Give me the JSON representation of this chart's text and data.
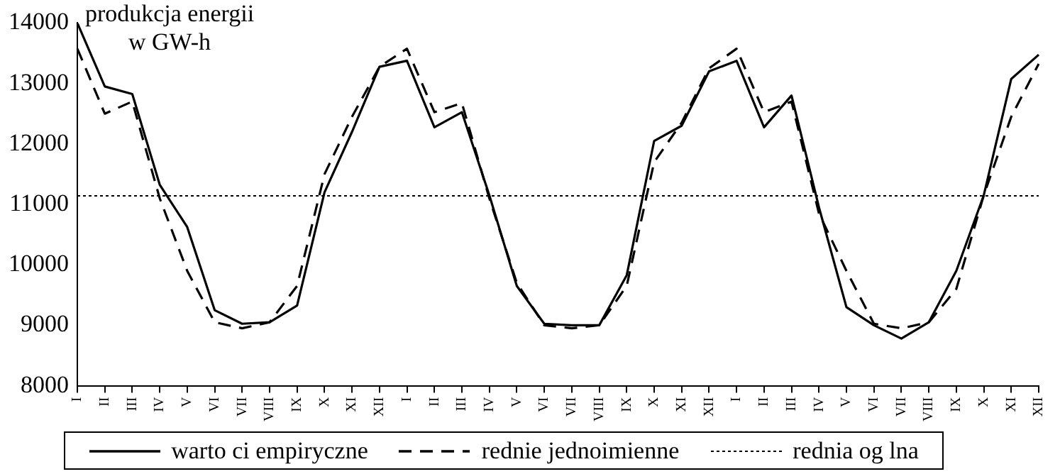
{
  "chart_data": {
    "type": "line",
    "ylabel": "produkcja energii w GW-h",
    "categories": [
      "I",
      "II",
      "III",
      "IV",
      "V",
      "VI",
      "VII",
      "VIII",
      "IX",
      "X",
      "XI",
      "XII",
      "I",
      "II",
      "III",
      "IV",
      "V",
      "VI",
      "VII",
      "VIII",
      "IX",
      "X",
      "XI",
      "XII",
      "I",
      "II",
      "III",
      "IV",
      "V",
      "VI",
      "VII",
      "VIII",
      "IX",
      "X",
      "XI",
      "XII"
    ],
    "series": [
      {
        "name": "warto ci empiryczne",
        "color": "#000000",
        "line_style": "solid",
        "values": [
          14000,
          12950,
          12825,
          11325,
          10625,
          9250,
          9025,
          9050,
          9325,
          11200,
          12200,
          13275,
          13375,
          12275,
          12525,
          11150,
          9650,
          9025,
          9000,
          9000,
          9825,
          12050,
          12300,
          13200,
          13375,
          12275,
          12800,
          10950,
          9300,
          9000,
          8780,
          9050,
          9900,
          11150,
          13075,
          13475
        ]
      },
      {
        "name": "rednie jednoimienne",
        "color": "#000000",
        "line_style": "dashed",
        "values": [
          13575,
          12500,
          12700,
          11100,
          9900,
          9050,
          8950,
          9050,
          9650,
          11500,
          12450,
          13275,
          13575,
          12525,
          12675,
          11100,
          9700,
          9000,
          8950,
          9000,
          9650,
          11700,
          12350,
          13250,
          13575,
          12525,
          12700,
          10850,
          9900,
          9025,
          8950,
          9050,
          9600,
          11150,
          12450,
          13325
        ]
      }
    ],
    "ref_lines": [
      {
        "axis": "y",
        "value": 11140,
        "label": "rednia og lna",
        "line_style": "dotted",
        "color": "#000000"
      }
    ],
    "ylim": [
      8000,
      14000
    ],
    "yticks": [
      8000,
      9000,
      10000,
      11000,
      12000,
      13000,
      14000
    ],
    "grid": false,
    "legend": "bottom",
    "marker": "none"
  }
}
